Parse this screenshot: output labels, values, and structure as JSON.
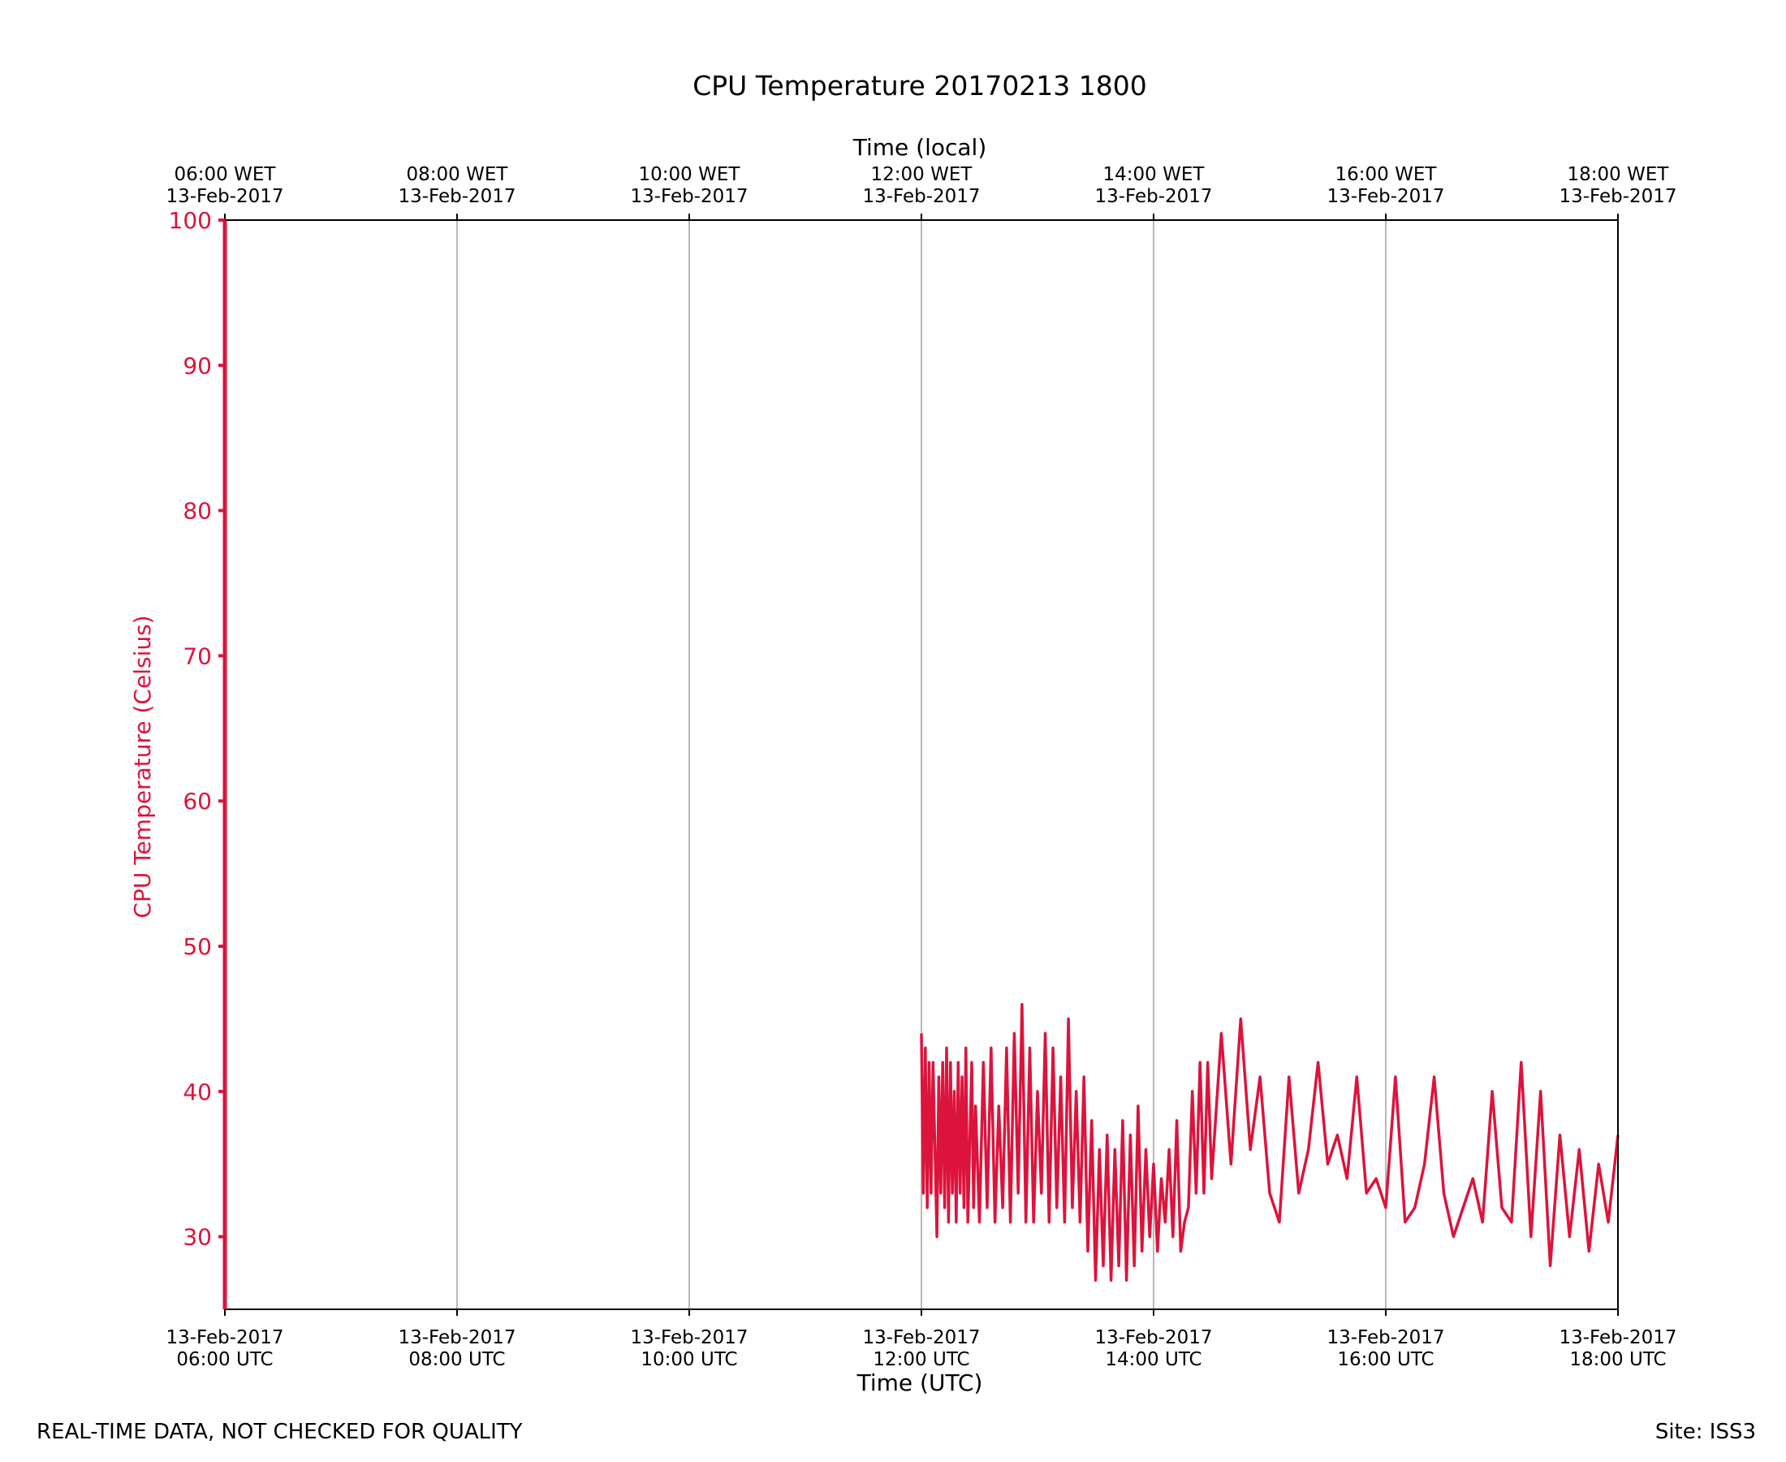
{
  "colors": {
    "series": "#dc143c",
    "grid": "#a0a0a0",
    "axis": "#000000"
  },
  "footer": {
    "quality_note": "REAL-TIME DATA, NOT CHECKED FOR QUALITY",
    "site": "Site: ISS3"
  },
  "chart_data": {
    "type": "line",
    "title": "CPU Temperature 20170213 1800",
    "xlabel": "Time (UTC)",
    "xlabel_top": "Time (local)",
    "ylabel": "CPU Temperature (Celsius)",
    "xlim": [
      "2017-02-13T06:00Z",
      "2017-02-13T18:00Z"
    ],
    "ylim": [
      25,
      100
    ],
    "grid": "vertical",
    "x_ticks_bottom": [
      [
        "13-Feb-2017",
        "06:00 UTC"
      ],
      [
        "13-Feb-2017",
        "08:00 UTC"
      ],
      [
        "13-Feb-2017",
        "10:00 UTC"
      ],
      [
        "13-Feb-2017",
        "12:00 UTC"
      ],
      [
        "13-Feb-2017",
        "14:00 UTC"
      ],
      [
        "13-Feb-2017",
        "16:00 UTC"
      ],
      [
        "13-Feb-2017",
        "18:00 UTC"
      ]
    ],
    "x_ticks_top": [
      [
        "06:00 WET",
        "13-Feb-2017"
      ],
      [
        "08:00 WET",
        "13-Feb-2017"
      ],
      [
        "10:00 WET",
        "13-Feb-2017"
      ],
      [
        "12:00 WET",
        "13-Feb-2017"
      ],
      [
        "14:00 WET",
        "13-Feb-2017"
      ],
      [
        "16:00 WET",
        "13-Feb-2017"
      ],
      [
        "18:00 WET",
        "13-Feb-2017"
      ]
    ],
    "y_ticks": [
      "30",
      "40",
      "50",
      "60",
      "70",
      "80",
      "90",
      "100"
    ],
    "series": [
      {
        "x": [
          "12:00",
          "12:01",
          "12:02",
          "12:03",
          "12:04",
          "12:05",
          "12:06",
          "12:08",
          "12:09",
          "12:10",
          "12:11",
          "12:12",
          "12:13",
          "12:14",
          "12:15",
          "12:16",
          "12:17",
          "12:18",
          "12:19",
          "12:20",
          "12:21",
          "12:22",
          "12:23",
          "12:24",
          "12:26",
          "12:27",
          "12:28",
          "12:30",
          "12:32",
          "12:34",
          "12:36",
          "12:38",
          "12:40",
          "12:42",
          "12:44",
          "12:46",
          "12:48",
          "12:50",
          "12:52",
          "12:54",
          "12:56",
          "12:58",
          "13:00",
          "13:02",
          "13:04",
          "13:06",
          "13:08",
          "13:10",
          "13:12",
          "13:14",
          "13:16",
          "13:18",
          "13:20",
          "13:22",
          "13:24",
          "13:26",
          "13:28",
          "13:30",
          "13:32",
          "13:34",
          "13:36",
          "13:38",
          "13:40",
          "13:42",
          "13:44",
          "13:46",
          "13:48",
          "13:50",
          "13:52",
          "13:54",
          "13:56",
          "13:58",
          "14:00",
          "14:02",
          "14:04",
          "14:06",
          "14:08",
          "14:10",
          "14:12",
          "14:14",
          "14:16",
          "14:18",
          "14:20",
          "14:22",
          "14:24",
          "14:26",
          "14:28",
          "14:30",
          "14:35",
          "14:40",
          "14:45",
          "14:50",
          "14:55",
          "15:00",
          "15:05",
          "15:10",
          "15:15",
          "15:20",
          "15:25",
          "15:30",
          "15:35",
          "15:40",
          "15:45",
          "15:50",
          "15:55",
          "16:00",
          "16:05",
          "16:10",
          "16:15",
          "16:20",
          "16:25",
          "16:30",
          "16:35",
          "16:40",
          "16:45",
          "16:50",
          "16:55",
          "17:00",
          "17:05",
          "17:10",
          "17:15",
          "17:20",
          "17:25",
          "17:30",
          "17:35",
          "17:40",
          "17:45",
          "17:50",
          "17:55",
          "18:00"
        ],
        "y": [
          44,
          33,
          43,
          32,
          42,
          33,
          42,
          30,
          41,
          33,
          42,
          32,
          43,
          31,
          42,
          33,
          40,
          31,
          42,
          33,
          41,
          32,
          43,
          31,
          42,
          32,
          39,
          31,
          42,
          32,
          43,
          31,
          39,
          32,
          43,
          31,
          44,
          33,
          46,
          31,
          43,
          31,
          40,
          33,
          44,
          31,
          43,
          32,
          41,
          31,
          45,
          32,
          40,
          31,
          41,
          29,
          38,
          27,
          36,
          28,
          37,
          27,
          36,
          28,
          38,
          27,
          37,
          28,
          39,
          29,
          36,
          30,
          35,
          29,
          34,
          31,
          36,
          30,
          38,
          29,
          31,
          32,
          40,
          33,
          42,
          33,
          42,
          34,
          44,
          35,
          45,
          36,
          41,
          33,
          31,
          41,
          33,
          36,
          42,
          35,
          37,
          34,
          41,
          33,
          34,
          32,
          41,
          31,
          32,
          35,
          41,
          33,
          30,
          32,
          34,
          31,
          40,
          32,
          31,
          42,
          30,
          40,
          28,
          37,
          30,
          36,
          29,
          35,
          31,
          37
        ]
      }
    ]
  }
}
